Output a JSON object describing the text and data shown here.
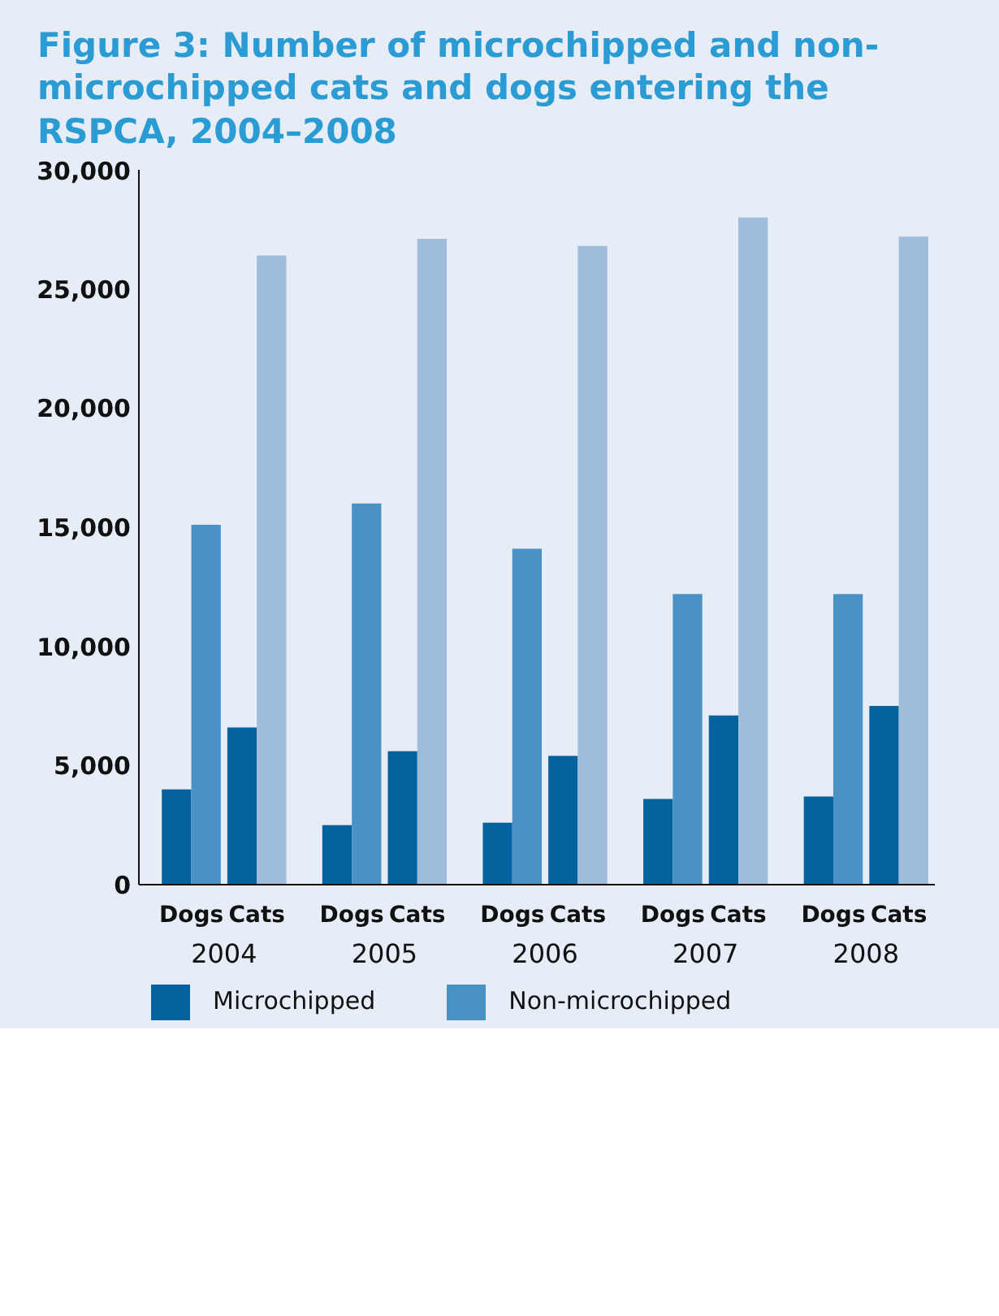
{
  "chart_data": {
    "type": "bar",
    "title": "Figure 3: Number of microchipped and non-microchipped cats and dogs entering the RSPCA, 2004–2008",
    "categories": [
      "Dogs",
      "Cats",
      "Dogs",
      "Cats",
      "Dogs",
      "Cats",
      "Dogs",
      "Cats",
      "Dogs",
      "Cats"
    ],
    "annotations": [
      "2004",
      "2005",
      "2006",
      "2007",
      "2008"
    ],
    "series": [
      {
        "name": "Microchipped",
        "color": "#04629e",
        "values": [
          4000,
          6600,
          2500,
          5600,
          2600,
          5400,
          3600,
          7100,
          3700,
          7500
        ]
      },
      {
        "name": "Non-microchipped",
        "color": "#4a92c5",
        "colors": [
          null,
          "#a0bcdc",
          null,
          "#a0bcdc",
          null,
          "#a0bcdc",
          null,
          "#a0bcdc",
          null,
          "#a0bcdc"
        ],
        "values": [
          15100,
          26400,
          16000,
          27100,
          14100,
          26800,
          12200,
          28000,
          12200,
          27200
        ]
      }
    ],
    "ylim": [
      0,
      30000
    ],
    "yticks": [
      {
        "value": 0,
        "label": "0"
      },
      {
        "value": 5000,
        "label": "5,000"
      },
      {
        "value": 10000,
        "label": "10,000"
      },
      {
        "value": 15000,
        "label": "15,000"
      },
      {
        "value": 20000,
        "label": "20,000"
      },
      {
        "value": 25000,
        "label": "25,000"
      },
      {
        "value": 30000,
        "label": "30,000"
      }
    ],
    "grid": false,
    "legend": "bottom left"
  }
}
